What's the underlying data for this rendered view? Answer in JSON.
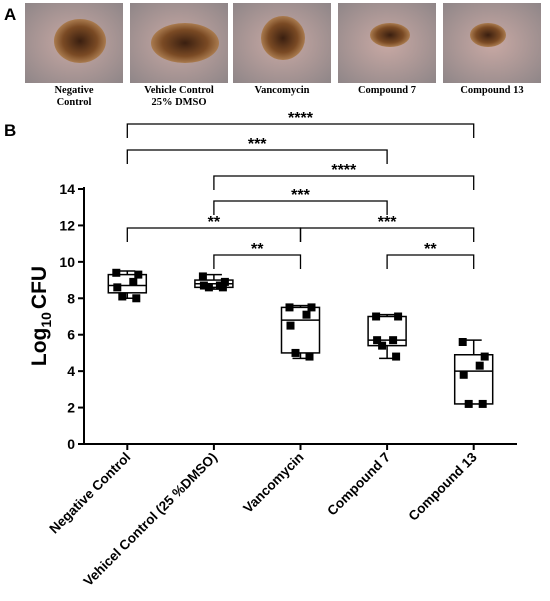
{
  "panel_labels": [
    "A",
    "B"
  ],
  "photo_captions": [
    [
      "Negative",
      "Control"
    ],
    [
      "Vehicle Control",
      "25% DMSO"
    ],
    [
      "Vancomycin"
    ],
    [
      "Compound 7"
    ],
    [
      "Compound 13"
    ]
  ],
  "chart_data": {
    "type": "box",
    "ylabel": [
      "Log",
      "10",
      "CFU"
    ],
    "categories": [
      "Negative Control",
      "Vehicel Control (25 %DMSO)",
      "Vancomycin",
      "Compound 7",
      "Compound 13"
    ],
    "boxes": [
      {
        "min": 8.0,
        "q1": 8.3,
        "median": 8.7,
        "q3": 9.3,
        "max": 9.5,
        "points": [
          9.4,
          9.3,
          8.9,
          8.6,
          8.1,
          8.0
        ]
      },
      {
        "min": 8.5,
        "q1": 8.6,
        "median": 8.8,
        "q3": 9.0,
        "max": 9.3,
        "points": [
          9.2,
          8.9,
          8.7,
          8.7,
          8.6,
          8.6
        ]
      },
      {
        "min": 4.7,
        "q1": 5.0,
        "median": 6.8,
        "q3": 7.5,
        "max": 7.6,
        "points": [
          7.5,
          7.5,
          7.1,
          6.5,
          5.0,
          4.8
        ]
      },
      {
        "min": 4.7,
        "q1": 5.4,
        "median": 5.7,
        "q3": 7.0,
        "max": 7.1,
        "points": [
          7.0,
          7.0,
          5.7,
          5.7,
          5.4,
          4.8
        ]
      },
      {
        "min": 2.2,
        "q1": 2.2,
        "median": 4.0,
        "q3": 4.9,
        "max": 5.7,
        "points": [
          5.6,
          4.8,
          4.3,
          3.8,
          2.2,
          2.2
        ]
      }
    ],
    "significance": [
      {
        "from": 0,
        "to": 4,
        "label": "****"
      },
      {
        "from": 0,
        "to": 3,
        "label": "***"
      },
      {
        "from": 1,
        "to": 4,
        "label": "****"
      },
      {
        "from": 1,
        "to": 3,
        "label": "***"
      },
      {
        "from": 0,
        "to": 2,
        "label": "**"
      },
      {
        "from": 2,
        "to": 4,
        "label": "***"
      },
      {
        "from": 1,
        "to": 2,
        "label": "**"
      },
      {
        "from": 3,
        "to": 4,
        "label": "**"
      }
    ],
    "ylim": [
      0,
      14
    ],
    "yticks": [
      0,
      2,
      4,
      6,
      8,
      10,
      12,
      14
    ],
    "color": "#000000"
  }
}
